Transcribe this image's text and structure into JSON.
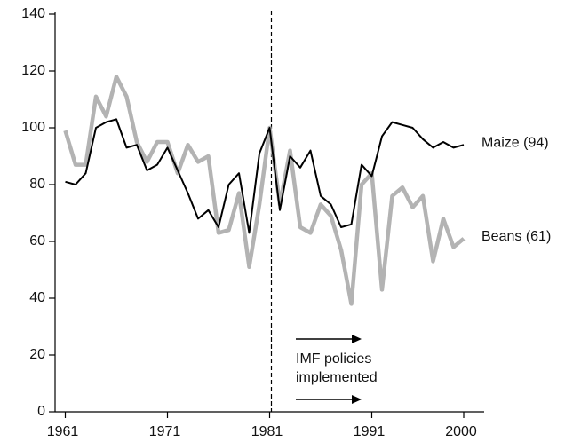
{
  "chart_data": {
    "type": "line",
    "x": [
      1961,
      1962,
      1963,
      1964,
      1965,
      1966,
      1967,
      1968,
      1969,
      1970,
      1971,
      1972,
      1973,
      1974,
      1975,
      1976,
      1977,
      1978,
      1979,
      1980,
      1981,
      1982,
      1983,
      1984,
      1985,
      1986,
      1987,
      1988,
      1989,
      1990,
      1991,
      1992,
      1993,
      1994,
      1995,
      1996,
      1997,
      1998,
      1999,
      2000
    ],
    "series": [
      {
        "name": "Maize (94)",
        "color": "#000000",
        "values": [
          81,
          80,
          84,
          100,
          102,
          103,
          93,
          94,
          85,
          87,
          93,
          85,
          77,
          68,
          71,
          65,
          80,
          84,
          63,
          91,
          100,
          71,
          90,
          86,
          92,
          76,
          73,
          65,
          66,
          87,
          83,
          97,
          102,
          101,
          100,
          96,
          93,
          95,
          93,
          94
        ]
      },
      {
        "name": "Beans (61)",
        "color": "#b3b3b3",
        "values": [
          99,
          87,
          87,
          111,
          104,
          118,
          111,
          95,
          88,
          95,
          95,
          84,
          94,
          88,
          90,
          63,
          64,
          77,
          51,
          73,
          100,
          73,
          92,
          65,
          63,
          73,
          69,
          57,
          38,
          80,
          84,
          43,
          76,
          79,
          72,
          76,
          53,
          68,
          58,
          61
        ]
      }
    ],
    "xlim": [
      1960,
      2002
    ],
    "xticks": [
      1961,
      1971,
      1981,
      1991,
      2000
    ],
    "ylim": [
      0,
      140
    ],
    "yticks": [
      0,
      20,
      40,
      60,
      80,
      100,
      120,
      140
    ],
    "marker_x": 1981,
    "annotation": [
      "IMF policies",
      "implemented"
    ]
  }
}
